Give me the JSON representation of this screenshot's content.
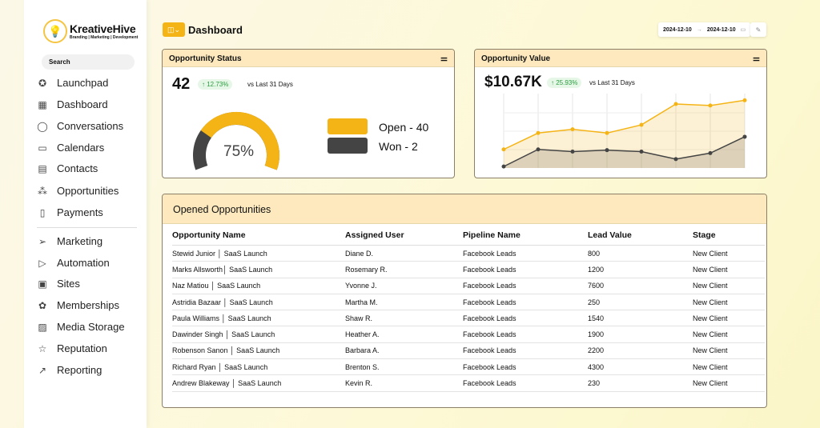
{
  "brand": {
    "name": "KreativeHive",
    "tagline": "Branding | Marketing | Development"
  },
  "search": {
    "placeholder": "Search"
  },
  "sidebar": {
    "items": [
      {
        "label": "Launchpad",
        "icon": "rocket-icon"
      },
      {
        "label": "Dashboard",
        "icon": "grid-icon"
      },
      {
        "label": "Conversations",
        "icon": "chat-icon"
      },
      {
        "label": "Calendars",
        "icon": "calendar-icon"
      },
      {
        "label": "Contacts",
        "icon": "contacts-icon"
      },
      {
        "label": "Opportunities",
        "icon": "opportunities-icon"
      },
      {
        "label": "Payments",
        "icon": "payments-icon"
      },
      {
        "label": "Marketing",
        "icon": "send-icon"
      },
      {
        "label": "Automation",
        "icon": "automation-icon"
      },
      {
        "label": "Sites",
        "icon": "sites-icon"
      },
      {
        "label": "Memberships",
        "icon": "membership-icon"
      },
      {
        "label": "Media Storage",
        "icon": "image-icon"
      },
      {
        "label": "Reputation",
        "icon": "star-icon"
      },
      {
        "label": "Reporting",
        "icon": "trend-icon"
      }
    ]
  },
  "header": {
    "title": "Dashboard",
    "date_from": "2024-12-10",
    "arrow": "→",
    "date_to": "2024-12-10"
  },
  "status_card": {
    "title": "Opportunity Status",
    "total": "42",
    "change": "↑ 12.73%",
    "vs": "vs Last 31 Days",
    "gauge_label": "75%",
    "gauge_value": 75,
    "legend": [
      {
        "label": "Open - 40",
        "color": "#f5b416"
      },
      {
        "label": "Won - 2",
        "color": "#444444"
      }
    ]
  },
  "value_card": {
    "title": "Opportunity Value",
    "total": "$10.67K",
    "change": "↑ 25.93%",
    "vs": "vs Last 31 Days"
  },
  "chart_data": {
    "type": "area",
    "ylim": [
      0,
      100
    ],
    "grid": true,
    "series": [
      {
        "color": "#f5b416",
        "values": [
          25,
          47,
          52,
          47,
          58,
          86,
          84,
          91
        ]
      },
      {
        "color": "#444444",
        "values": [
          2,
          25,
          22,
          24,
          22,
          12,
          20,
          42
        ]
      }
    ]
  },
  "table": {
    "title": "Opened Opportunities",
    "columns": [
      "Opportunity Name",
      "Assigned User",
      "Pipeline Name",
      "Lead Value",
      "Stage"
    ],
    "rows": [
      [
        "Stewid Junior │ SaaS Launch",
        "Diane D.",
        "Facebook Leads",
        "800",
        "New Client"
      ],
      [
        "Marks Allsworth│ SaaS Launch",
        "Rosemary R.",
        "Facebook Leads",
        "1200",
        "New Client"
      ],
      [
        "Naz Matiou │ SaaS Launch",
        "Yvonne J.",
        "Facebook Leads",
        "7600",
        "New Client"
      ],
      [
        "Astridia Bazaar │ SaaS Launch",
        "Martha M.",
        "Facebook Leads",
        "250",
        "New Client"
      ],
      [
        "Paula Williams │ SaaS Launch",
        "Shaw R.",
        "Facebook Leads",
        "1540",
        "New Client"
      ],
      [
        "Dawinder Singh │ SaaS Launch",
        "Heather A.",
        "Facebook Leads",
        "1900",
        "New Client"
      ],
      [
        "Robenson Sanon │ SaaS Launch",
        "Barbara A.",
        "Facebook Leads",
        "2200",
        "New Client"
      ],
      [
        "Richard Ryan │ SaaS Launch",
        "Brenton S.",
        "Facebook Leads",
        "4300",
        "New Client"
      ],
      [
        "Andrew Blakeway │ SaaS Launch",
        "Kevin R.",
        "Facebook Leads",
        "230",
        "New Client"
      ]
    ]
  }
}
